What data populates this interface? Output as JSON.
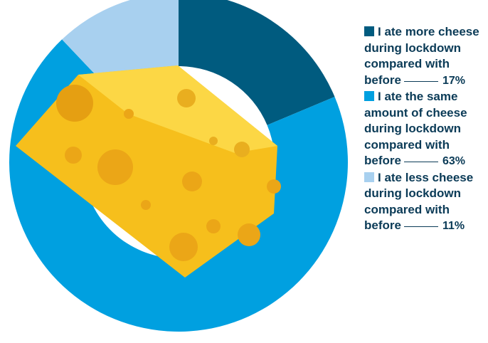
{
  "chart_data": {
    "type": "donut",
    "categories": [
      "I ate more cheese during lockdown compared with before",
      "I ate the same amount of cheese during lockdown compared with before",
      "I ate less cheese during lockdown compared with before"
    ],
    "values": [
      17,
      63,
      11
    ],
    "value_labels": [
      "17%",
      "63%",
      "11%"
    ],
    "colors": [
      "#005b7f",
      "#00a0e0",
      "#a8d0ef"
    ]
  }
}
